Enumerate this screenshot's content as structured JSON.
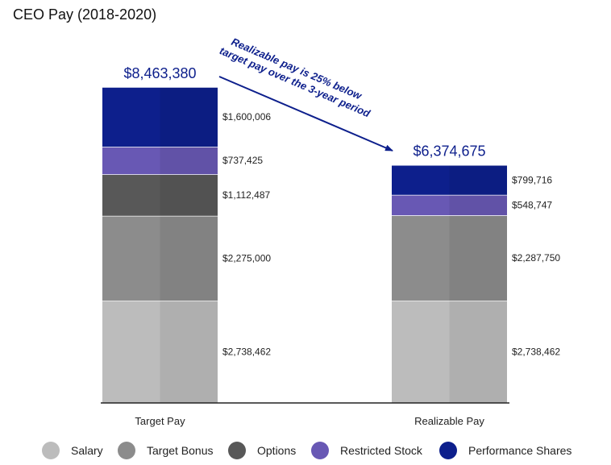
{
  "chart_data": {
    "type": "bar",
    "stacked": true,
    "title": "CEO Pay (2018-2020)",
    "categories": [
      "Target Pay",
      "Realizable Pay"
    ],
    "series": [
      {
        "name": "Salary",
        "color": "#bcbcbc",
        "values": [
          2738462,
          2738462
        ],
        "labels": [
          "$2,738,462",
          "$2,738,462"
        ]
      },
      {
        "name": "Target Bonus",
        "color": "#8c8c8c",
        "values": [
          2275000,
          2287750
        ],
        "labels": [
          "$2,275,000",
          "$2,287,750"
        ]
      },
      {
        "name": "Options",
        "color": "#585858",
        "values": [
          1112487,
          0
        ],
        "labels": [
          "$1,112,487",
          ""
        ]
      },
      {
        "name": "Restricted Stock",
        "color": "#6858b4",
        "values": [
          737425,
          548747
        ],
        "labels": [
          "$737,425",
          "$548,747"
        ]
      },
      {
        "name": "Performance Shares",
        "color": "#0d1f8c",
        "values": [
          1600006,
          799716
        ],
        "labels": [
          "$1,600,006",
          "$799,716"
        ]
      }
    ],
    "totals": [
      {
        "value": 8463380,
        "label": "$8,463,380"
      },
      {
        "value": 6374675,
        "label": "$6,374,675"
      }
    ],
    "annotation": {
      "line1": "Realizable pay is 25% below",
      "line2": "target pay over the 3-year period"
    },
    "colors": {
      "accent": "#0d1f8c",
      "axis": "#222222"
    }
  }
}
